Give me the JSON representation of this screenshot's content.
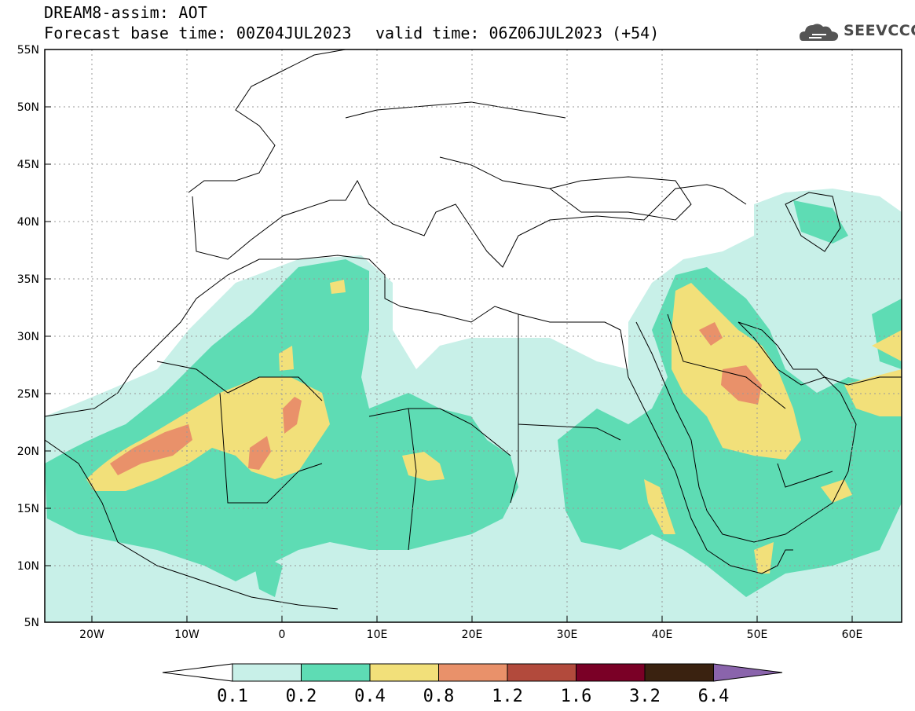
{
  "header": {
    "title": "DREAM8-assim: AOT",
    "base_time": "Forecast base time: 00Z04JUL2023",
    "valid_time": "valid time: 06Z06JUL2023 (+54)",
    "logo_text": "SEEVCCC"
  },
  "map": {
    "lon_range": [
      -25,
      65
    ],
    "lat_range": [
      5,
      55
    ],
    "lat_labels": [
      "55N",
      "50N",
      "45N",
      "40N",
      "35N",
      "30N",
      "25N",
      "20N",
      "15N",
      "10N",
      "5N"
    ],
    "lon_labels": [
      "20W",
      "10W",
      "0",
      "10E",
      "20E",
      "30E",
      "40E",
      "50E",
      "60E"
    ]
  },
  "colorbar": {
    "levels": [
      "0.1",
      "0.2",
      "0.4",
      "0.8",
      "1.2",
      "1.6",
      "3.2",
      "6.4"
    ],
    "colors": [
      "#c8f0e8",
      "#5edcb4",
      "#f2e07a",
      "#e9916a",
      "#b24a3c",
      "#7a0026",
      "#3a2210",
      "#8a64ac"
    ]
  }
}
